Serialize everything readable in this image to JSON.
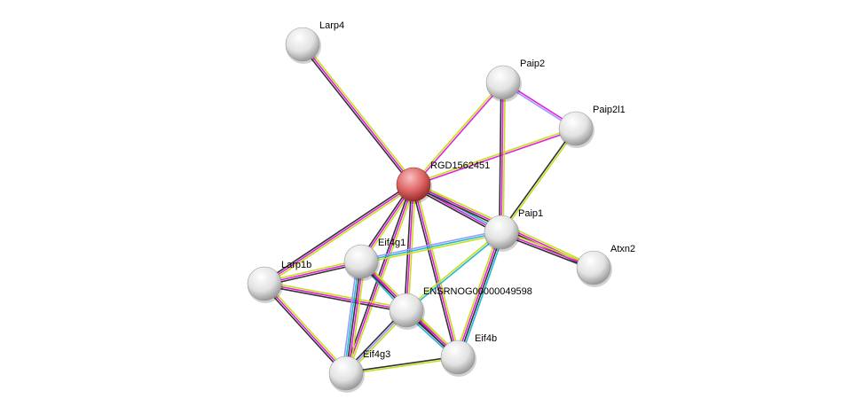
{
  "colors": {
    "query_node": "#e06666",
    "node": "#e8e8e8",
    "evidence": {
      "textmining": "#c7e01c",
      "experiments": "#e020e0",
      "coexpression": "#333333",
      "databases": "#20b8d8",
      "homology": "#9999ff"
    }
  },
  "nodes": [
    {
      "id": "RGD1562451",
      "label": "RGD1562451",
      "query": true
    },
    {
      "id": "Larp4",
      "label": "Larp4"
    },
    {
      "id": "Paip2",
      "label": "Paip2"
    },
    {
      "id": "Paip2l1",
      "label": "Paip2l1"
    },
    {
      "id": "Paip1",
      "label": "Paip1"
    },
    {
      "id": "Atxn2",
      "label": "Atxn2"
    },
    {
      "id": "Eif4g1",
      "label": "Eif4g1"
    },
    {
      "id": "Larp1b",
      "label": "Larp1b"
    },
    {
      "id": "ENSRNOG00000049598",
      "label": "ENSRNOG00000049598"
    },
    {
      "id": "Eif4b",
      "label": "Eif4b"
    },
    {
      "id": "Eif4g3",
      "label": "Eif4g3"
    }
  ],
  "edges": [
    {
      "a": "Larp4",
      "b": "RGD1562451",
      "ev": [
        "textmining",
        "experiments",
        "coexpression"
      ]
    },
    {
      "a": "RGD1562451",
      "b": "Paip2",
      "ev": [
        "textmining",
        "experiments"
      ]
    },
    {
      "a": "RGD1562451",
      "b": "Paip2l1",
      "ev": [
        "textmining",
        "experiments"
      ]
    },
    {
      "a": "Paip2",
      "b": "Paip2l1",
      "ev": [
        "experiments",
        "homology"
      ]
    },
    {
      "a": "Paip2",
      "b": "Paip1",
      "ev": [
        "textmining",
        "experiments",
        "coexpression"
      ]
    },
    {
      "a": "Paip2l1",
      "b": "Paip1",
      "ev": [
        "textmining",
        "coexpression"
      ]
    },
    {
      "a": "RGD1562451",
      "b": "Paip1",
      "ev": [
        "textmining",
        "databases",
        "experiments",
        "coexpression"
      ]
    },
    {
      "a": "RGD1562451",
      "b": "Atxn2",
      "ev": [
        "textmining",
        "experiments",
        "coexpression"
      ]
    },
    {
      "a": "Paip1",
      "b": "Atxn2",
      "ev": [
        "textmining",
        "experiments",
        "coexpression"
      ]
    },
    {
      "a": "RGD1562451",
      "b": "Larp1b",
      "ev": [
        "textmining",
        "experiments",
        "coexpression"
      ]
    },
    {
      "a": "RGD1562451",
      "b": "Eif4g1",
      "ev": [
        "textmining",
        "experiments",
        "coexpression"
      ]
    },
    {
      "a": "RGD1562451",
      "b": "ENSRNOG00000049598",
      "ev": [
        "textmining",
        "experiments",
        "coexpression"
      ]
    },
    {
      "a": "RGD1562451",
      "b": "Eif4b",
      "ev": [
        "textmining",
        "experiments",
        "coexpression"
      ]
    },
    {
      "a": "RGD1562451",
      "b": "Eif4g3",
      "ev": [
        "textmining",
        "experiments",
        "coexpression"
      ]
    },
    {
      "a": "Eif4g1",
      "b": "Paip1",
      "ev": [
        "homology",
        "databases",
        "textmining"
      ]
    },
    {
      "a": "ENSRNOG00000049598",
      "b": "Paip1",
      "ev": [
        "textmining",
        "databases"
      ]
    },
    {
      "a": "Eif4b",
      "b": "Paip1",
      "ev": [
        "textmining",
        "experiments",
        "coexpression",
        "databases"
      ]
    },
    {
      "a": "Larp1b",
      "b": "Eif4g1",
      "ev": [
        "textmining",
        "experiments",
        "coexpression"
      ]
    },
    {
      "a": "Larp1b",
      "b": "ENSRNOG00000049598",
      "ev": [
        "textmining",
        "experiments",
        "coexpression"
      ]
    },
    {
      "a": "Larp1b",
      "b": "Eif4g3",
      "ev": [
        "textmining",
        "experiments",
        "coexpression"
      ]
    },
    {
      "a": "Eif4g1",
      "b": "ENSRNOG00000049598",
      "ev": [
        "textmining",
        "experiments",
        "databases"
      ]
    },
    {
      "a": "Eif4g1",
      "b": "Eif4b",
      "ev": [
        "textmining",
        "experiments",
        "coexpression"
      ]
    },
    {
      "a": "Eif4g1",
      "b": "Eif4g3",
      "ev": [
        "textmining",
        "experiments",
        "coexpression",
        "databases",
        "homology"
      ]
    },
    {
      "a": "ENSRNOG00000049598",
      "b": "Eif4b",
      "ev": [
        "textmining",
        "experiments",
        "coexpression",
        "databases"
      ]
    },
    {
      "a": "ENSRNOG00000049598",
      "b": "Eif4g3",
      "ev": [
        "textmining",
        "homology",
        "coexpression"
      ]
    },
    {
      "a": "Eif4b",
      "b": "Eif4g3",
      "ev": [
        "textmining",
        "coexpression"
      ]
    }
  ]
}
